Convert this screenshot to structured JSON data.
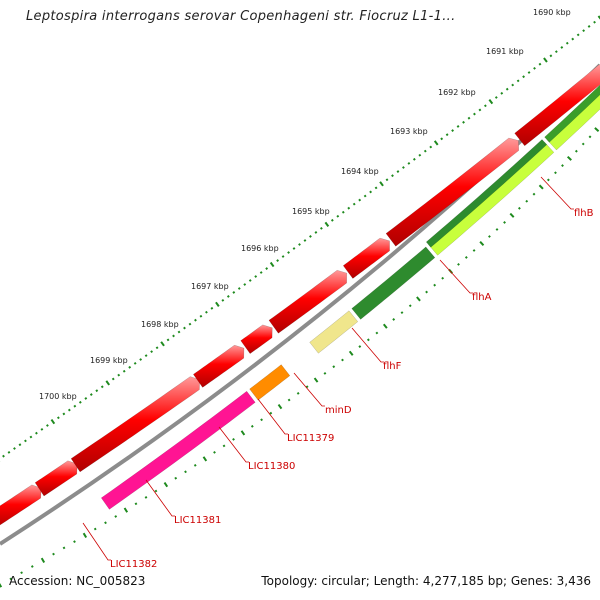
{
  "title": "Leptospira interrogans serovar Copenhageni str. Fiocruz L1-1...",
  "footer": {
    "accession": "Accession: NC_005823",
    "summary": "Topology: circular; Length: 4,277,185 bp; Genes: 3,436"
  },
  "ruler_labels": [
    "1690 kbp",
    "1691 kbp",
    "1692 kbp",
    "1693 kbp",
    "1694 kbp",
    "1695 kbp",
    "1696 kbp",
    "1697 kbp",
    "1698 kbp",
    "1699 kbp",
    "1700 kbp"
  ],
  "gene_labels": [
    "flhB",
    "flhA",
    "flhF",
    "minD",
    "LIC11379",
    "LIC11380",
    "LIC11381",
    "LIC11382"
  ],
  "colors": {
    "backbone": "#8c8c8c",
    "forward_gene": "#ff0000",
    "ruler": "#1e8a1e",
    "label": "#cc0000",
    "flhB": "#c8ff3c",
    "flhA": "#c8ff3c",
    "flhF": "#2e8b2e",
    "minD": "#f0e68c",
    "LIC11380": "#ff8c00",
    "LIC11381": "#ff1493"
  }
}
